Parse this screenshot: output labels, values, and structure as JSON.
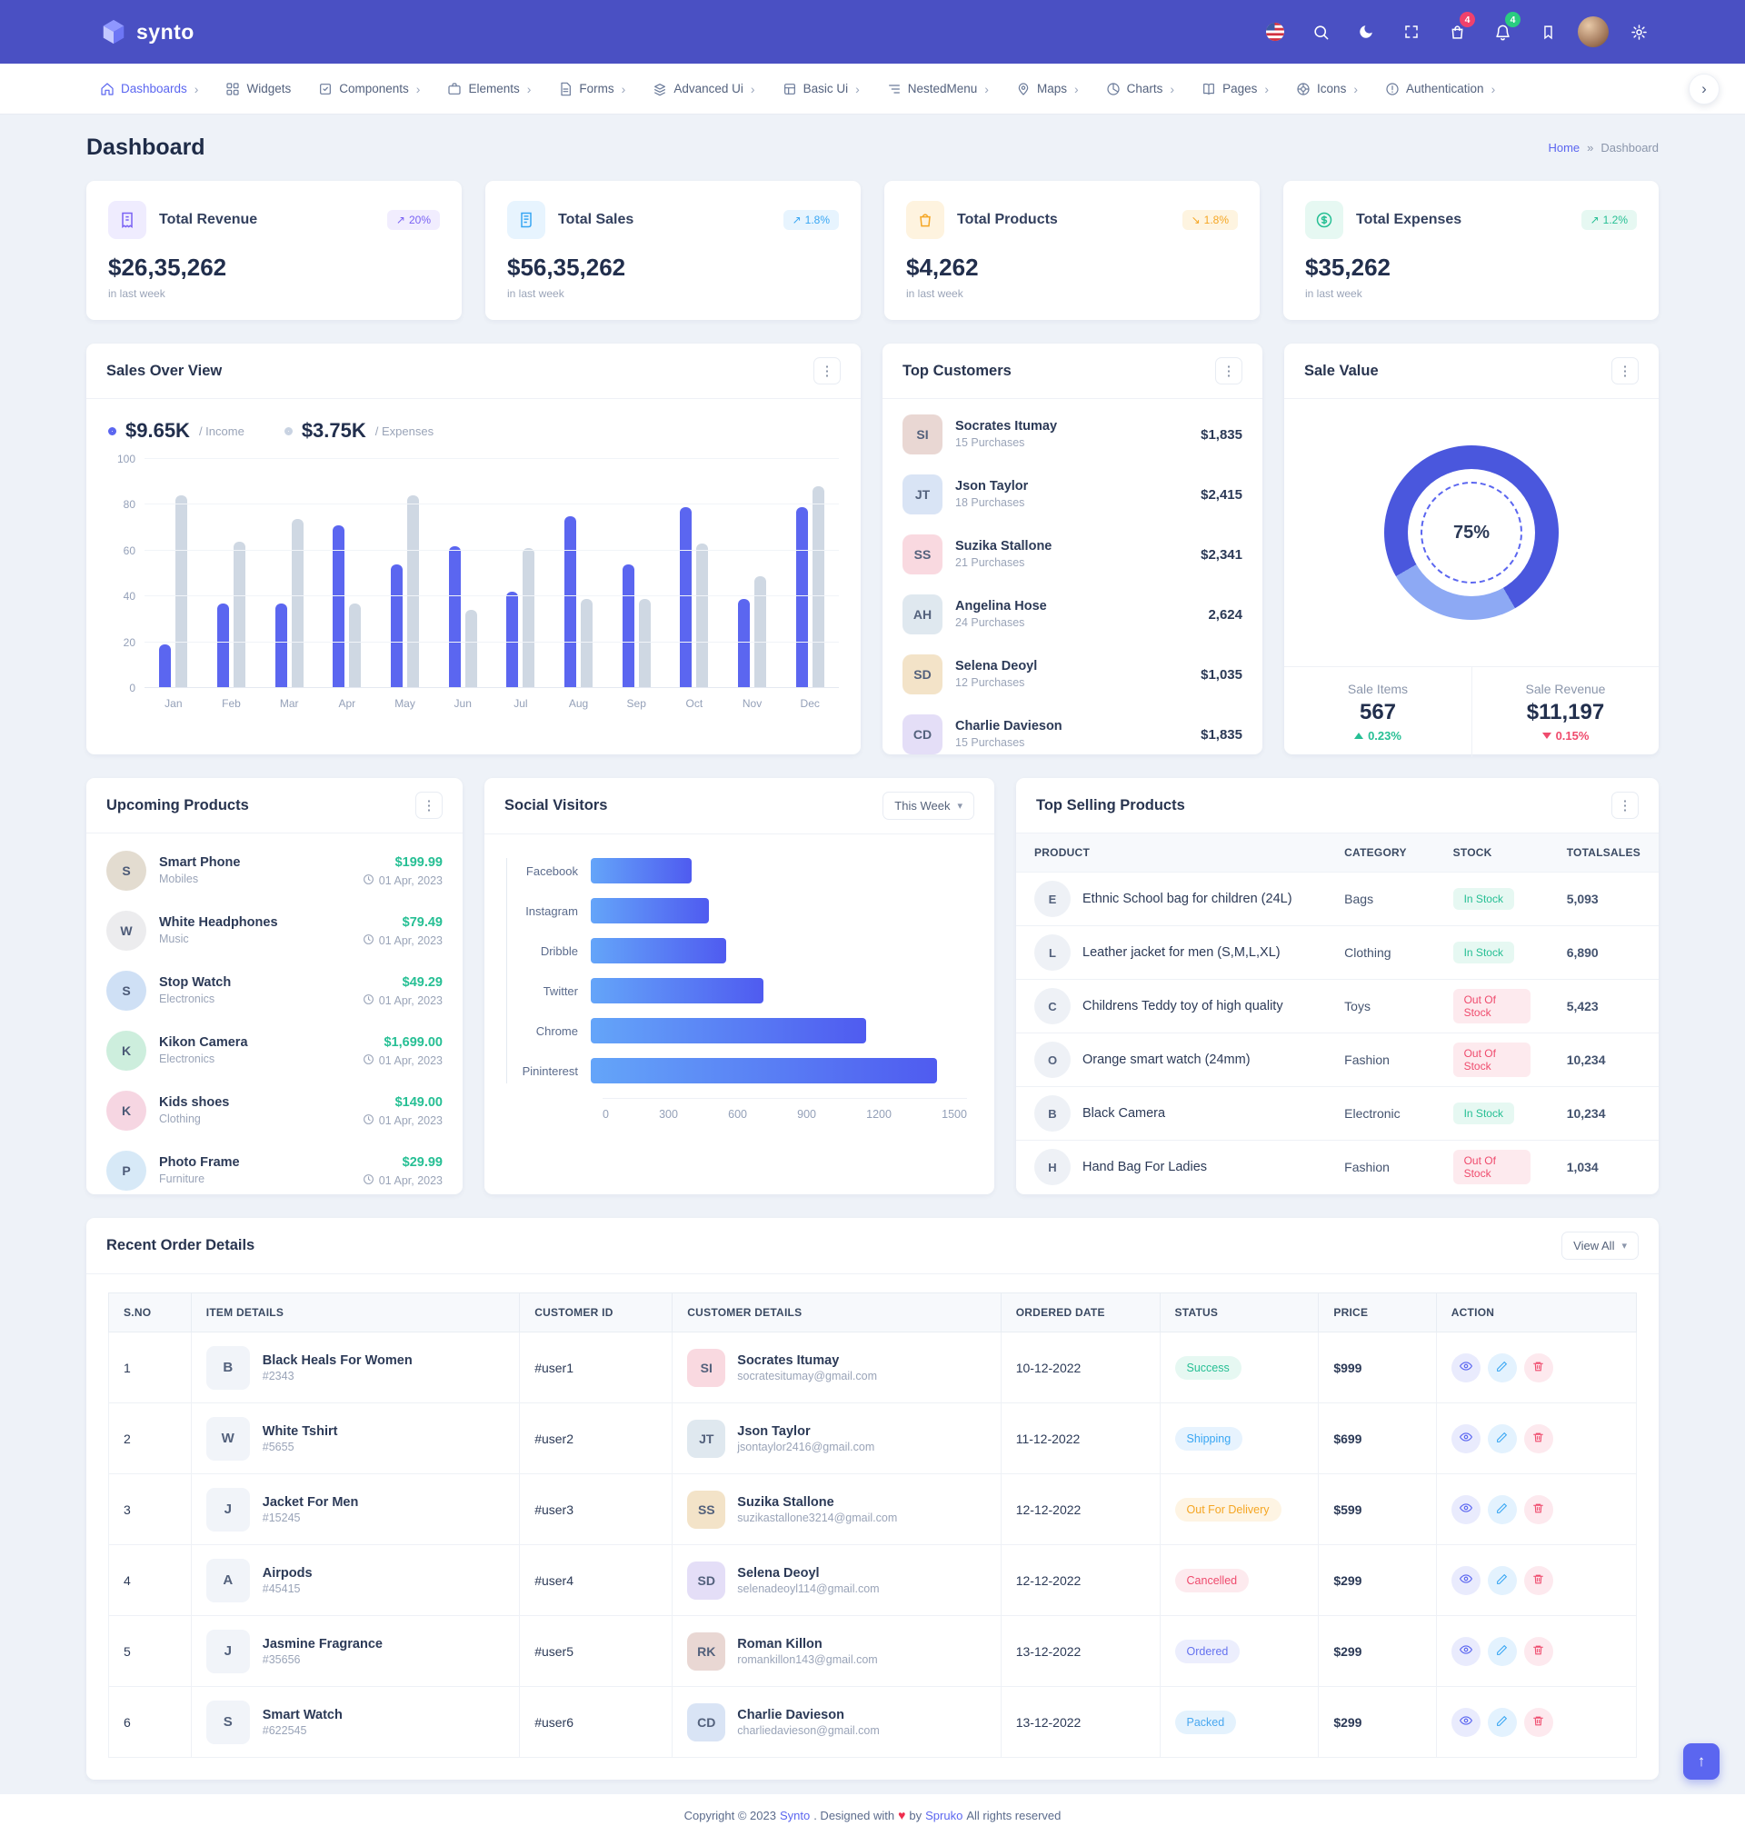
{
  "theme": {
    "header": "#4a50c3",
    "primary": "#5b66f0",
    "success": "#26bf94",
    "danger": "#ef4b6d",
    "warning": "#f5a623",
    "info": "#38a6f3"
  },
  "topbar": {
    "brand": "synto",
    "icons": [
      {
        "name": "flag-icon"
      },
      {
        "name": "search-icon"
      },
      {
        "name": "moon-icon"
      },
      {
        "name": "fullscreen-icon"
      },
      {
        "name": "cart-icon",
        "badge": "4",
        "badge_color": "#f0416c"
      },
      {
        "name": "bell-icon",
        "badge": "4",
        "badge_color": "#2acc80"
      },
      {
        "name": "bookmark-icon"
      },
      {
        "name": "avatar"
      },
      {
        "name": "gear-icon"
      }
    ]
  },
  "nav": {
    "items": [
      {
        "label": "Dashboards",
        "icon": "home",
        "active": true,
        "has_submenu": true
      },
      {
        "label": "Widgets",
        "icon": "grid",
        "has_submenu": false
      },
      {
        "label": "Components",
        "icon": "components",
        "has_submenu": true
      },
      {
        "label": "Elements",
        "icon": "elements",
        "has_submenu": true
      },
      {
        "label": "Forms",
        "icon": "forms",
        "has_submenu": true
      },
      {
        "label": "Advanced Ui",
        "icon": "advanced",
        "has_submenu": true
      },
      {
        "label": "Basic Ui",
        "icon": "basic",
        "has_submenu": true
      },
      {
        "label": "NestedMenu",
        "icon": "nested",
        "has_submenu": true
      },
      {
        "label": "Maps",
        "icon": "maps",
        "has_submenu": true
      },
      {
        "label": "Charts",
        "icon": "charts",
        "has_submenu": true
      },
      {
        "label": "Pages",
        "icon": "pages",
        "has_submenu": true
      },
      {
        "label": "Icons",
        "icon": "icons",
        "has_submenu": true
      },
      {
        "label": "Authentication",
        "icon": "auth",
        "has_submenu": true
      }
    ]
  },
  "page_title": "Dashboard",
  "breadcrumb": {
    "home": "Home",
    "separator": "»",
    "current": "Dashboard"
  },
  "stats": [
    {
      "title": "Total Revenue",
      "value": "$26,35,262",
      "badge": "20%",
      "arrow": "↗",
      "note": "in last week"
    },
    {
      "title": "Total Sales",
      "value": "$56,35,262",
      "badge": "1.8%",
      "arrow": "↗",
      "note": "in last week"
    },
    {
      "title": "Total Products",
      "value": "$4,262",
      "badge": "1.8%",
      "arrow": "↘",
      "note": "in last week"
    },
    {
      "title": "Total Expenses",
      "value": "$35,262",
      "badge": "1.2%",
      "arrow": "↗",
      "note": "in last week"
    }
  ],
  "sales_overview": {
    "title": "Sales Over View",
    "legend": [
      {
        "value": "$9.65K",
        "label": "/ Income"
      },
      {
        "value": "$3.75K",
        "label": "/ Expenses"
      }
    ],
    "y_ticks": [
      "100",
      "80",
      "60",
      "40",
      "20",
      "0"
    ],
    "months": [
      "Jan",
      "Feb",
      "Mar",
      "Apr",
      "May",
      "Jun",
      "Jul",
      "Aug",
      "Sep",
      "Oct",
      "Nov",
      "Dec"
    ],
    "income": [
      19,
      37,
      37,
      71,
      54,
      62,
      42,
      75,
      54,
      79,
      39,
      79
    ],
    "expenses": [
      84,
      64,
      74,
      37,
      84,
      34,
      61,
      39,
      39,
      63,
      49,
      88
    ]
  },
  "top_customers": {
    "title": "Top Customers",
    "items": [
      {
        "name": "Socrates Itumay",
        "purchases": "15 Purchases",
        "amount": "$1,835"
      },
      {
        "name": "Json Taylor",
        "purchases": "18 Purchases",
        "amount": "$2,415"
      },
      {
        "name": "Suzika Stallone",
        "purchases": "21 Purchases",
        "amount": "$2,341"
      },
      {
        "name": "Angelina Hose",
        "purchases": "24 Purchases",
        "amount": "2,624"
      },
      {
        "name": "Selena Deoyl",
        "purchases": "12 Purchases",
        "amount": "$1,035"
      },
      {
        "name": "Charlie Davieson",
        "purchases": "15 Purchases",
        "amount": "$1,835"
      }
    ]
  },
  "sale_value": {
    "title": "Sale Value",
    "percent": "75%",
    "donut": {
      "value": 75,
      "color": "#4a57dd",
      "rest_color": "#8da9f4"
    },
    "stats": [
      {
        "label": "Sale Items",
        "value": "567",
        "change": "0.23%",
        "direction": "up"
      },
      {
        "label": "Sale Revenue",
        "value": "$11,197",
        "change": "0.15%",
        "direction": "down"
      }
    ]
  },
  "upcoming_products": {
    "title": "Upcoming Products",
    "items": [
      {
        "name": "Smart Phone",
        "category": "Mobiles",
        "price": "$199.99",
        "date": "01 Apr, 2023",
        "tint": "#e3dcd0"
      },
      {
        "name": "White Headphones",
        "category": "Music",
        "price": "$79.49",
        "date": "01 Apr, 2023",
        "tint": "#ececee"
      },
      {
        "name": "Stop Watch",
        "category": "Electronics",
        "price": "$49.29",
        "date": "01 Apr, 2023",
        "tint": "#cfe0f5"
      },
      {
        "name": "Kikon Camera",
        "category": "Electronics",
        "price": "$1,699.00",
        "date": "01 Apr, 2023",
        "tint": "#cdeedd"
      },
      {
        "name": "Kids shoes",
        "category": "Clothing",
        "price": "$149.00",
        "date": "01 Apr, 2023",
        "tint": "#f6d6e2"
      },
      {
        "name": "Photo Frame",
        "category": "Furniture",
        "price": "$29.99",
        "date": "01 Apr, 2023",
        "tint": "#d7e9f7"
      }
    ]
  },
  "social_visitors": {
    "title": "Social Visitors",
    "filter": "This Week",
    "max": 1500,
    "x_ticks": [
      "0",
      "300",
      "600",
      "900",
      "1200",
      "1500"
    ],
    "items": [
      {
        "label": "Facebook",
        "value": 400
      },
      {
        "label": "Instagram",
        "value": 470
      },
      {
        "label": "Dribble",
        "value": 540
      },
      {
        "label": "Twitter",
        "value": 690
      },
      {
        "label": "Chrome",
        "value": 1100
      },
      {
        "label": "Pininterest",
        "value": 1380
      }
    ]
  },
  "top_selling": {
    "title": "Top Selling Products",
    "headers": [
      "PRODUCT",
      "CATEGORY",
      "STOCK",
      "TOTALSALES"
    ],
    "rows": [
      {
        "product": "Ethnic School bag for children (24L)",
        "category": "Bags",
        "stock": "In Stock",
        "in_stock": true,
        "sales": "5,093"
      },
      {
        "product": "Leather jacket for men (S,M,L,XL)",
        "category": "Clothing",
        "stock": "In Stock",
        "in_stock": true,
        "sales": "6,890"
      },
      {
        "product": "Childrens Teddy toy of high quality",
        "category": "Toys",
        "stock": "Out Of Stock",
        "in_stock": false,
        "sales": "5,423"
      },
      {
        "product": "Orange smart watch (24mm)",
        "category": "Fashion",
        "stock": "Out Of Stock",
        "in_stock": false,
        "sales": "10,234"
      },
      {
        "product": "Black Camera",
        "category": "Electronic",
        "stock": "In Stock",
        "in_stock": true,
        "sales": "10,234"
      },
      {
        "product": "Hand Bag For Ladies",
        "category": "Fashion",
        "stock": "Out Of Stock",
        "in_stock": false,
        "sales": "1,034"
      }
    ]
  },
  "recent_orders": {
    "title": "Recent Order Details",
    "view_all": "View All",
    "headers": [
      "S.NO",
      "ITEM DETAILS",
      "CUSTOMER ID",
      "CUSTOMER DETAILS",
      "ORDERED DATE",
      "STATUS",
      "PRICE",
      "ACTION"
    ],
    "rows": [
      {
        "sno": "1",
        "item": "Black Heals For Women",
        "code": "#2343",
        "customer_id": "#user1",
        "customer": "Socrates Itumay",
        "email": "socratesitumay@gmail.com",
        "date": "10-12-2022",
        "status": "Success",
        "price": "$999"
      },
      {
        "sno": "2",
        "item": "White Tshirt",
        "code": "#5655",
        "customer_id": "#user2",
        "customer": "Json Taylor",
        "email": "jsontaylor2416@gmail.com",
        "date": "11-12-2022",
        "status": "Shipping",
        "price": "$699"
      },
      {
        "sno": "3",
        "item": "Jacket For Men",
        "code": "#15245",
        "customer_id": "#user3",
        "customer": "Suzika Stallone",
        "email": "suzikastallone3214@gmail.com",
        "date": "12-12-2022",
        "status": "Out For Delivery",
        "price": "$599"
      },
      {
        "sno": "4",
        "item": "Airpods",
        "code": "#45415",
        "customer_id": "#user4",
        "customer": "Selena Deoyl",
        "email": "selenadeoyl114@gmail.com",
        "date": "12-12-2022",
        "status": "Cancelled",
        "price": "$299"
      },
      {
        "sno": "5",
        "item": "Jasmine Fragrance",
        "code": "#35656",
        "customer_id": "#user5",
        "customer": "Roman Killon",
        "email": "romankillon143@gmail.com",
        "date": "13-12-2022",
        "status": "Ordered",
        "price": "$299"
      },
      {
        "sno": "6",
        "item": "Smart Watch",
        "code": "#622545",
        "customer_id": "#user6",
        "customer": "Charlie Davieson",
        "email": "charliedavieson@gmail.com",
        "date": "13-12-2022",
        "status": "Packed",
        "price": "$299"
      }
    ]
  },
  "footer": {
    "prefix": "Copyright © 2023",
    "brand": "Synto",
    "middle": ". Designed with",
    "by": "by",
    "designer": "Spruko",
    "suffix": "All rights reserved"
  }
}
